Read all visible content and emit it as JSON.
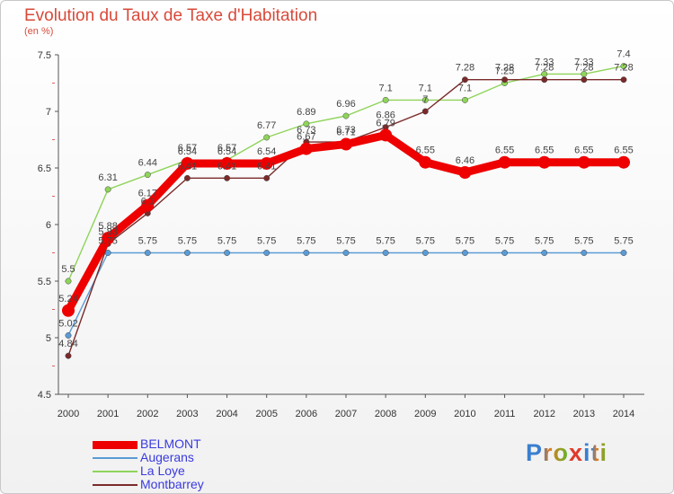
{
  "header": {
    "title": "Evolution du Taux de Taxe d'Habitation",
    "subtitle": "(en %)"
  },
  "logo": {
    "text_before": "Pro",
    "text_x": "x",
    "text_after": "iti"
  },
  "chart_data": {
    "type": "line",
    "title": "Evolution du Taux de Taxe d'Habitation",
    "subtitle": "(en %)",
    "xlabel": "",
    "ylabel": "",
    "ylim": [
      4.5,
      7.5
    ],
    "yticks": [
      4.5,
      5,
      5.5,
      6,
      6.5,
      7,
      7.5
    ],
    "grid": false,
    "legend_position": "bottom-left",
    "x": [
      "2000",
      "2001",
      "2002",
      "2003",
      "2004",
      "2005",
      "2006",
      "2007",
      "2008",
      "2009",
      "2010",
      "2011",
      "2012",
      "2013",
      "2014"
    ],
    "series": [
      {
        "name": "BELMONT",
        "color": "#ee0000",
        "values": [
          5.24,
          5.88,
          6.17,
          6.54,
          6.54,
          6.54,
          6.67,
          6.71,
          6.79,
          6.55,
          6.46,
          6.55,
          6.55,
          6.55,
          6.55
        ],
        "labels": [
          "5.24",
          "5.88",
          "6.17",
          "6.54",
          "6.54",
          "6.54",
          "6.67",
          "6.71",
          "6.79",
          "6.55",
          "6.46",
          "6.55",
          "6.55",
          "6.55",
          "6.55"
        ]
      },
      {
        "name": "Augerans",
        "color": "#5b9bd5",
        "values": [
          5.02,
          5.75,
          5.75,
          5.75,
          5.75,
          5.75,
          5.75,
          5.75,
          5.75,
          5.75,
          5.75,
          5.75,
          5.75,
          5.75,
          5.75
        ],
        "labels": [
          "5.02",
          "5.75",
          "5.75",
          "5.75",
          "5.75",
          "5.75",
          "5.75",
          "5.75",
          "5.75",
          "5.75",
          "5.75",
          "5.75",
          "5.75",
          "5.75",
          "5.75"
        ]
      },
      {
        "name": "La Loye",
        "color": "#8fd45a",
        "values": [
          5.5,
          6.31,
          6.44,
          6.57,
          6.57,
          6.77,
          6.89,
          6.96,
          7.1,
          7.1,
          7.1,
          7.25,
          7.33,
          7.33,
          7.4
        ],
        "labels": [
          "5.5",
          "6.31",
          "6.44",
          "6.57",
          "6.57",
          "6.77",
          "6.89",
          "6.96",
          "7.1",
          "7.1",
          "7.1",
          "7.25",
          "7.33",
          "7.33",
          "7.4"
        ]
      },
      {
        "name": "Montbarrey",
        "color": "#7a2a2a",
        "values": [
          4.84,
          5.83,
          6.1,
          6.41,
          6.41,
          6.41,
          6.73,
          6.73,
          6.86,
          7.0,
          7.28,
          7.28,
          7.28,
          7.28,
          7.28
        ],
        "labels": [
          "4.84",
          "5.83",
          "6.1",
          "6.41",
          "6.41",
          "6.41",
          "6.73",
          "6.73",
          "6.86",
          "7",
          "7.28",
          "7.28",
          "7.28",
          "7.28",
          "7.28"
        ]
      }
    ]
  }
}
